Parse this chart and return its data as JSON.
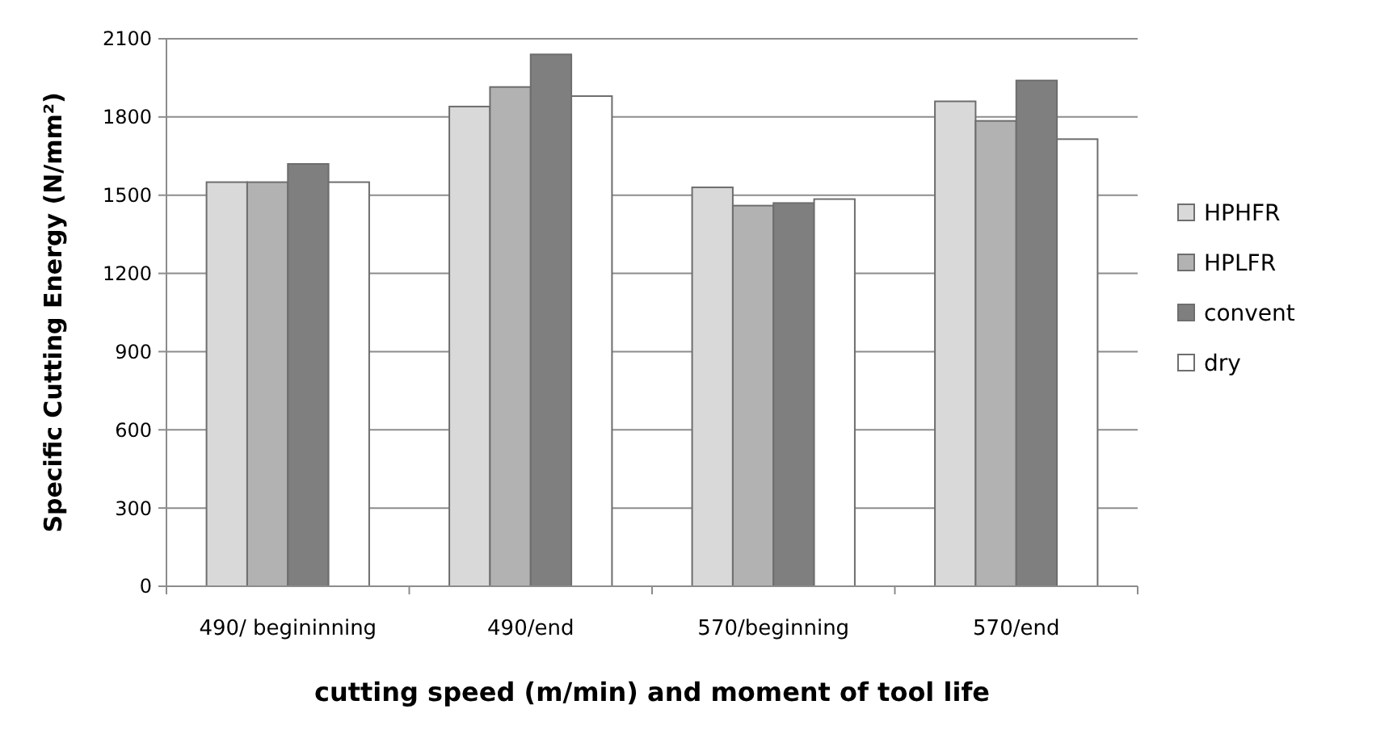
{
  "chart_data": {
    "type": "bar",
    "xlabel": "cutting speed (m/min) and moment of tool life",
    "ylabel": "Specific Cutting Energy (N/mm²)",
    "categories": [
      "490/ begininning",
      "490/end",
      "570/beginning",
      "570/end"
    ],
    "series": [
      {
        "name": "HPHFR",
        "color": "#d9d9d9",
        "values": [
          1550,
          1840,
          1530,
          1860
        ]
      },
      {
        "name": "HPLFR",
        "color": "#b2b2b2",
        "values": [
          1550,
          1915,
          1460,
          1785
        ]
      },
      {
        "name": "convent",
        "color": "#7f7f7f",
        "values": [
          1620,
          2040,
          1470,
          1940
        ]
      },
      {
        "name": "dry",
        "color": "#ffffff",
        "values": [
          1550,
          1880,
          1485,
          1715
        ]
      }
    ],
    "ylim": [
      0,
      2100
    ],
    "yticks": [
      0,
      300,
      600,
      900,
      1200,
      1500,
      1800,
      2100
    ],
    "grid": "y",
    "legend": "right"
  }
}
